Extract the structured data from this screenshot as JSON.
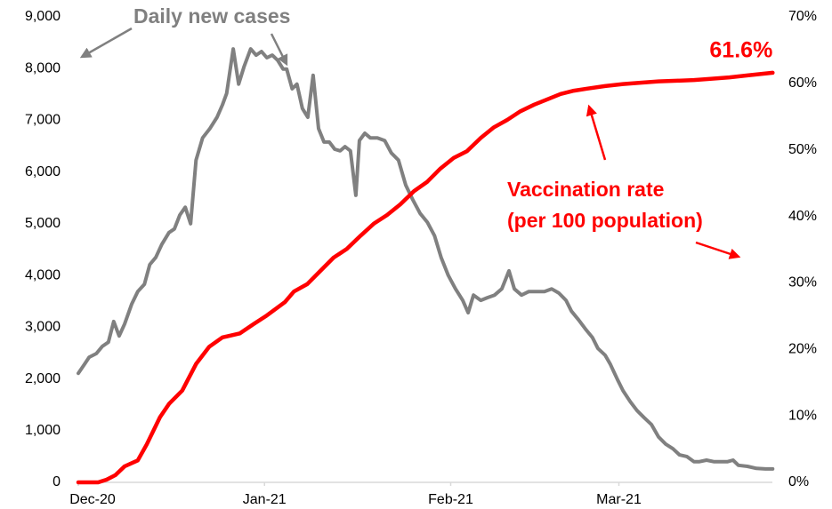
{
  "chart_data": {
    "type": "line",
    "annotations": [
      "Daily new cases",
      "Vaccination rate",
      "(per 100 population)"
    ],
    "xlim": [
      0,
      116
    ],
    "xticks": [
      {
        "value": 0,
        "label": "Dec-20"
      },
      {
        "value": 31,
        "label": "Jan-21"
      },
      {
        "value": 62,
        "label": "Feb-21"
      },
      {
        "value": 90,
        "label": "Mar-21"
      }
    ],
    "ylim": [
      0,
      9000
    ],
    "yticks": [
      0,
      {
        "value": 1000,
        "label": "1,000"
      },
      {
        "value": 2000,
        "label": "2,000"
      },
      {
        "value": 3000,
        "label": "3,000"
      },
      {
        "value": 4000,
        "label": "4,000"
      },
      {
        "value": 5000,
        "label": "5,000"
      },
      {
        "value": 6000,
        "label": "6,000"
      },
      {
        "value": 7000,
        "label": "7,000"
      },
      {
        "value": 8000,
        "label": "8,000"
      },
      {
        "value": 9000,
        "label": "9,000"
      }
    ],
    "y2lim": [
      0,
      70
    ],
    "y2ticks": [
      {
        "value": 0,
        "label": "0%"
      },
      {
        "value": 10,
        "label": "10%"
      },
      {
        "value": 20,
        "label": "20%"
      },
      {
        "value": 30,
        "label": "30%"
      },
      {
        "value": 40,
        "label": "40%"
      },
      {
        "value": 50,
        "label": "50%"
      },
      {
        "value": 60,
        "label": "60%"
      },
      {
        "value": 70,
        "label": "70%"
      }
    ],
    "grid": false,
    "series": [
      {
        "name": "Daily new cases",
        "color": "#808080",
        "axis": "y",
        "x": [
          0,
          1.0,
          1.8,
          3.0,
          4.0,
          5.0,
          5.9,
          6.8,
          7.7,
          8.9,
          9.9,
          11.0,
          11.9,
          12.9,
          13.9,
          15.1,
          16.0,
          16.9,
          17.8,
          18.7,
          19.6,
          20.7,
          21.9,
          23.1,
          24.0,
          24.7,
          25.8,
          26.7,
          27.6,
          28.7,
          29.6,
          30.5,
          31.4,
          32.3,
          33.2,
          34.1,
          34.7,
          35.6,
          36.4,
          37.3,
          38.2,
          39.1,
          40.0,
          40.9,
          41.8,
          42.7,
          43.6,
          44.4,
          45.3,
          46.2,
          46.8,
          47.7,
          48.6,
          49.8,
          51.0,
          52.1,
          53.3,
          54.5,
          55.7,
          56.9,
          58.1,
          59.3,
          60.4,
          61.6,
          62.8,
          64.0,
          64.9,
          65.8,
          67.0,
          68.1,
          69.3,
          70.5,
          71.7,
          72.6,
          73.8,
          75.0,
          76.1,
          77.6,
          78.8,
          80.0,
          81.2,
          82.1,
          83.3,
          84.4,
          85.6,
          86.5,
          87.7,
          88.6,
          89.8,
          90.7,
          91.9,
          93.0,
          94.2,
          95.4,
          96.6,
          97.8,
          99.0,
          100.1,
          101.3,
          102.5,
          103.4,
          104.6,
          105.8,
          107.0,
          108.1,
          109.0,
          109.9,
          111.4,
          112.9,
          114.4,
          115.6
        ],
        "values": [
          2110,
          2280,
          2420,
          2490,
          2630,
          2710,
          3110,
          2830,
          3060,
          3450,
          3690,
          3830,
          4210,
          4350,
          4600,
          4830,
          4900,
          5170,
          5320,
          5000,
          6230,
          6660,
          6840,
          7060,
          7300,
          7520,
          8380,
          7700,
          8040,
          8380,
          8260,
          8330,
          8210,
          8260,
          8160,
          7990,
          7990,
          7610,
          7700,
          7230,
          7060,
          7870,
          6840,
          6580,
          6580,
          6440,
          6410,
          6490,
          6410,
          5550,
          6610,
          6750,
          6660,
          6660,
          6610,
          6370,
          6230,
          5750,
          5460,
          5200,
          5030,
          4770,
          4350,
          4000,
          3740,
          3520,
          3280,
          3620,
          3520,
          3570,
          3620,
          3740,
          4090,
          3740,
          3620,
          3690,
          3690,
          3690,
          3740,
          3660,
          3520,
          3310,
          3140,
          2970,
          2800,
          2590,
          2460,
          2280,
          1980,
          1770,
          1560,
          1390,
          1250,
          1120,
          880,
          740,
          650,
          530,
          500,
          400,
          400,
          430,
          400,
          400,
          400,
          430,
          330,
          310,
          270,
          260,
          260
        ]
      },
      {
        "name": "Vaccination rate",
        "color": "#ff0000",
        "axis": "y2",
        "x": [
          0,
          1.8,
          3.3,
          4.7,
          6.2,
          7.7,
          9.9,
          11.4,
          13.6,
          15.1,
          17.3,
          19.6,
          21.8,
          24.0,
          26.9,
          29.2,
          31.4,
          34.4,
          35.9,
          38.1,
          40.3,
          42.5,
          44.7,
          47.0,
          49.2,
          51.4,
          53.6,
          55.9,
          58.1,
          60.3,
          62.5,
          64.7,
          67.0,
          69.2,
          71.4,
          73.6,
          75.9,
          78.1,
          80.3,
          82.5,
          84.7,
          87.7,
          90.7,
          93.6,
          96.6,
          99.6,
          102.5,
          105.5,
          108.4,
          111.4,
          115.6
        ],
        "values": [
          0,
          0,
          0,
          0.4,
          1.1,
          2.4,
          3.3,
          5.7,
          9.8,
          11.8,
          13.8,
          17.8,
          20.4,
          21.8,
          22.4,
          23.8,
          25.1,
          27.1,
          28.7,
          29.8,
          31.8,
          33.8,
          35.1,
          37.1,
          38.9,
          40.2,
          41.8,
          43.8,
          45.2,
          47.2,
          48.8,
          49.8,
          51.8,
          53.4,
          54.5,
          55.8,
          56.8,
          57.6,
          58.4,
          58.9,
          59.2,
          59.6,
          59.9,
          60.1,
          60.3,
          60.4,
          60.5,
          60.7,
          60.9,
          61.2,
          61.6
        ],
        "value_labels": [
          null,
          null,
          null,
          null,
          null,
          null,
          null,
          null,
          null,
          null,
          null,
          null,
          null,
          null,
          null,
          null,
          null,
          null,
          null,
          null,
          null,
          null,
          null,
          null,
          null,
          null,
          null,
          null,
          null,
          null,
          null,
          null,
          null,
          null,
          null,
          null,
          null,
          null,
          null,
          null,
          null,
          null,
          null,
          null,
          null,
          null,
          null,
          null,
          null,
          null,
          "61.6%"
        ]
      }
    ]
  }
}
